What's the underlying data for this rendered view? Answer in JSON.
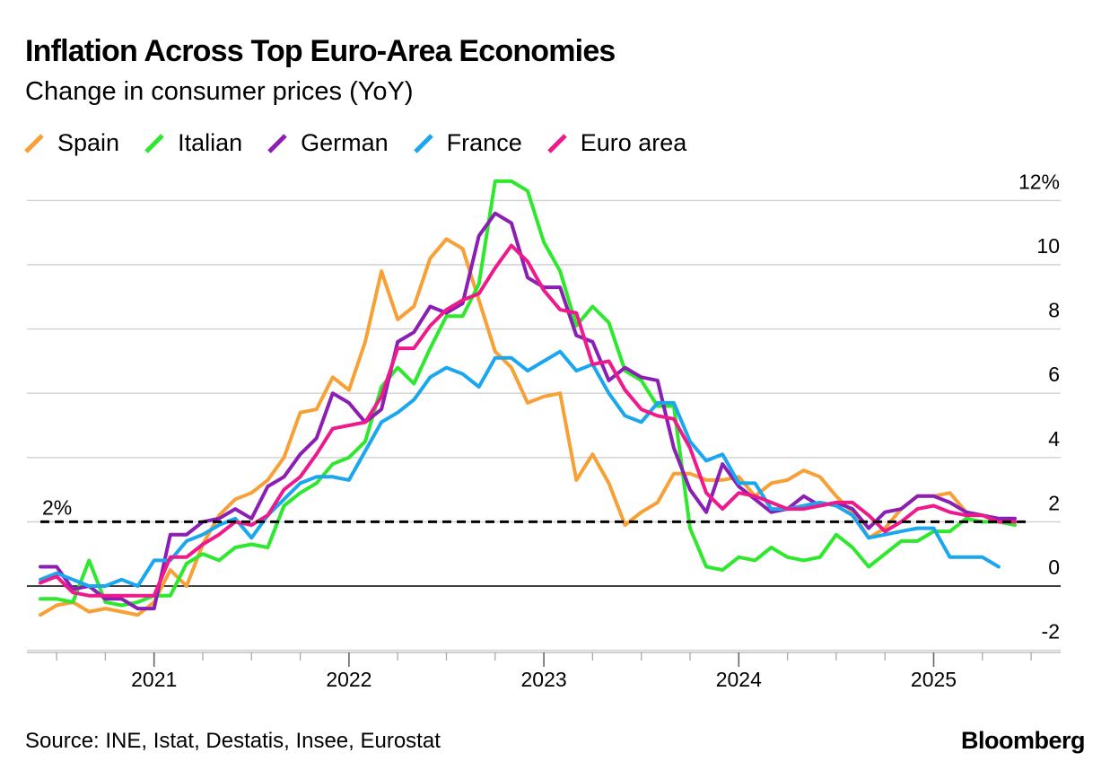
{
  "header": {
    "title": "Inflation Across Top Euro-Area Economies",
    "subtitle": "Change in consumer prices (YoY)"
  },
  "legend": [
    {
      "label": "Spain",
      "color": "#f7a035"
    },
    {
      "label": "Italian",
      "color": "#2ee82e"
    },
    {
      "label": "German",
      "color": "#8b1fb3"
    },
    {
      "label": "France",
      "color": "#1aa7ee"
    },
    {
      "label": "Euro area",
      "color": "#ee1a8c"
    }
  ],
  "footer": {
    "source": "Source: INE, Istat, Destatis, Insee, Eurostat",
    "brand": "Bloomberg"
  },
  "chart_data": {
    "type": "line",
    "title": "Inflation Across Top Euro-Area Economies",
    "subtitle": "Change in consumer prices (YoY)",
    "xlabel": "",
    "ylabel": "",
    "x_start": "2020-06",
    "x_end": "2025-06",
    "x_ticks": [
      "2021",
      "2022",
      "2023",
      "2024",
      "2025"
    ],
    "y_ticks": [
      {
        "value": -2,
        "label": "-2"
      },
      {
        "value": 0,
        "label": "0"
      },
      {
        "value": 2,
        "label": "2"
      },
      {
        "value": 4,
        "label": "4"
      },
      {
        "value": 6,
        "label": "6"
      },
      {
        "value": 8,
        "label": "8"
      },
      {
        "value": 10,
        "label": "10"
      },
      {
        "value": 12,
        "label": "12%"
      }
    ],
    "ylim": [
      -2,
      12
    ],
    "grid": true,
    "reference_line": {
      "value": 2,
      "label": "2%"
    },
    "series": [
      {
        "name": "Spain",
        "color": "#f7a035",
        "values": [
          -0.9,
          -0.6,
          -0.5,
          -0.8,
          -0.7,
          -0.8,
          -0.9,
          -0.5,
          0.5,
          0.0,
          1.3,
          2.2,
          2.7,
          2.9,
          3.3,
          4.0,
          5.4,
          5.5,
          6.5,
          6.1,
          7.6,
          9.8,
          8.3,
          8.7,
          10.2,
          10.8,
          10.5,
          8.9,
          7.3,
          6.8,
          5.7,
          5.9,
          6.0,
          3.3,
          4.1,
          3.2,
          1.9,
          2.3,
          2.6,
          3.5,
          3.5,
          3.3,
          3.3,
          3.4,
          2.8,
          3.2,
          3.3,
          3.6,
          3.4,
          2.8,
          2.3,
          1.5,
          1.8,
          2.4,
          2.8,
          2.8,
          2.9,
          2.3,
          2.2,
          2.0,
          2.0
        ]
      },
      {
        "name": "Italian",
        "color": "#2ee82e",
        "values": [
          -0.4,
          -0.4,
          -0.5,
          0.8,
          -0.5,
          -0.6,
          -0.5,
          -0.3,
          -0.3,
          0.7,
          1.0,
          0.8,
          1.2,
          1.3,
          1.2,
          2.5,
          2.9,
          3.2,
          3.8,
          4.0,
          4.5,
          6.2,
          6.8,
          6.3,
          7.4,
          8.4,
          8.4,
          9.4,
          12.6,
          12.6,
          12.3,
          10.7,
          9.8,
          8.1,
          8.7,
          8.2,
          6.7,
          6.4,
          5.6,
          5.6,
          1.8,
          0.6,
          0.5,
          0.9,
          0.8,
          1.2,
          0.9,
          0.8,
          0.9,
          1.6,
          1.2,
          0.6,
          1.0,
          1.4,
          1.4,
          1.7,
          1.7,
          2.1,
          2.0,
          2.0,
          1.9
        ]
      },
      {
        "name": "German",
        "color": "#8b1fb3",
        "values": [
          0.6,
          0.6,
          -0.1,
          0.0,
          -0.4,
          -0.4,
          -0.7,
          -0.7,
          1.6,
          1.6,
          2.0,
          2.1,
          2.4,
          2.1,
          3.1,
          3.4,
          4.1,
          4.6,
          6.0,
          5.7,
          5.1,
          5.5,
          7.6,
          7.9,
          8.7,
          8.5,
          8.8,
          10.9,
          11.6,
          11.3,
          9.6,
          9.3,
          9.3,
          7.8,
          7.6,
          6.4,
          6.8,
          6.5,
          6.4,
          4.3,
          3.0,
          2.3,
          3.8,
          3.1,
          2.7,
          2.3,
          2.4,
          2.8,
          2.5,
          2.6,
          2.4,
          1.8,
          2.3,
          2.4,
          2.8,
          2.8,
          2.6,
          2.3,
          2.2,
          2.1,
          2.1
        ]
      },
      {
        "name": "France",
        "color": "#1aa7ee",
        "values": [
          0.2,
          0.4,
          0.2,
          0.0,
          0.0,
          0.2,
          0.0,
          0.8,
          0.8,
          1.4,
          1.6,
          1.9,
          2.1,
          1.5,
          2.2,
          2.7,
          3.2,
          3.4,
          3.4,
          3.3,
          4.2,
          5.1,
          5.4,
          5.8,
          6.5,
          6.8,
          6.6,
          6.2,
          7.1,
          7.1,
          6.7,
          7.0,
          7.3,
          6.7,
          6.9,
          6.0,
          5.3,
          5.1,
          5.7,
          5.7,
          4.5,
          3.9,
          4.1,
          3.2,
          3.2,
          2.4,
          2.4,
          2.5,
          2.6,
          2.5,
          2.2,
          1.5,
          1.6,
          1.7,
          1.8,
          1.8,
          0.9,
          0.9,
          0.9,
          0.6
        ]
      },
      {
        "name": "Euro area",
        "color": "#ee1a8c",
        "values": [
          0.1,
          0.3,
          -0.2,
          -0.3,
          -0.3,
          -0.3,
          -0.3,
          -0.3,
          0.9,
          0.9,
          1.3,
          1.6,
          2.0,
          1.9,
          2.2,
          3.0,
          3.4,
          4.1,
          4.9,
          5.0,
          5.1,
          5.9,
          7.4,
          7.4,
          8.1,
          8.6,
          8.9,
          9.1,
          9.9,
          10.6,
          10.1,
          9.2,
          8.6,
          8.5,
          6.9,
          7.0,
          6.1,
          5.5,
          5.3,
          5.2,
          4.3,
          2.9,
          2.4,
          2.9,
          2.8,
          2.6,
          2.4,
          2.4,
          2.5,
          2.6,
          2.6,
          2.2,
          1.7,
          2.0,
          2.4,
          2.5,
          2.3,
          2.2,
          2.2,
          2.0,
          2.0
        ]
      }
    ]
  }
}
